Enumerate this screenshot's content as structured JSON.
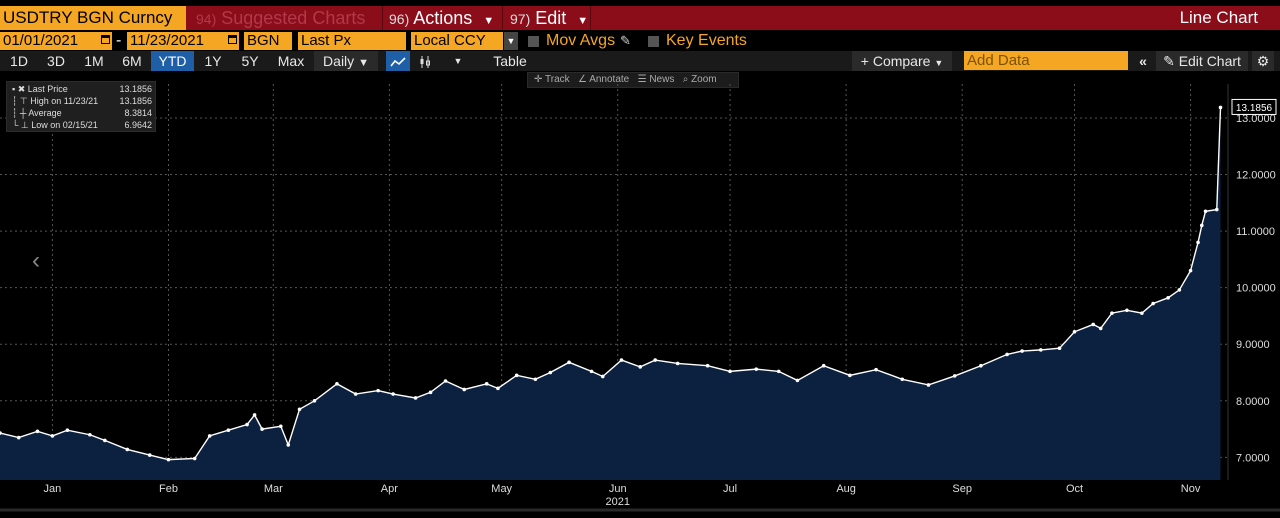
{
  "toolbar": {
    "ticker": "USDTRY BGN Curncy",
    "suggested": {
      "num": "94)",
      "label": "Suggested Charts"
    },
    "actions": {
      "num": "96)",
      "label": "Actions"
    },
    "edit": {
      "num": "97)",
      "label": "Edit"
    },
    "chart_type": "Line Chart"
  },
  "options": {
    "start_date": "01/01/2021",
    "dash": "-",
    "end_date": "11/23/2021",
    "source": "BGN",
    "field": "Last Px",
    "currency": "Local CCY",
    "mov_avgs": "Mov Avgs",
    "key_events": "Key Events"
  },
  "ranges": [
    "1D",
    "3D",
    "1M",
    "6M",
    "YTD",
    "1Y",
    "5Y",
    "Max"
  ],
  "active_range": "YTD",
  "frequency": "Daily",
  "table_label": "Table",
  "compare_label": "Compare",
  "add_data_placeholder": "Add Data",
  "edit_chart_label": "Edit Chart",
  "tools": [
    "Track",
    "Annotate",
    "News",
    "Zoom"
  ],
  "legend": [
    {
      "label": "Last Price",
      "value": "13.1856"
    },
    {
      "label": "High on 11/23/21",
      "value": "13.1856"
    },
    {
      "label": "Average",
      "value": "8.3814"
    },
    {
      "label": "Low on 02/15/21",
      "value": "6.9642"
    }
  ],
  "colors": {
    "line": "#ffffff",
    "area": "#0c2140",
    "accent": "#f5a623",
    "header": "#8b0d1a"
  },
  "chart_data": {
    "type": "area",
    "xlabel": "2021",
    "ylim": [
      6.6,
      13.6
    ],
    "y_ticks": [
      7.0,
      8.0,
      9.0,
      10.0,
      11.0,
      12.0,
      13.0
    ],
    "y_tick_labels": [
      "7.0000",
      "8.0000",
      "9.0000",
      "10.0000",
      "11.0000",
      "12.0000",
      "13.0000"
    ],
    "x_ticks": [
      "Jan",
      "Feb",
      "Mar",
      "Apr",
      "May",
      "Jun",
      "Jul",
      "Aug",
      "Sep",
      "Oct",
      "Nov"
    ],
    "x_tick_dates": [
      "2021-01-15",
      "2021-02-15",
      "2021-03-15",
      "2021-04-15",
      "2021-05-15",
      "2021-06-15",
      "2021-07-15",
      "2021-08-15",
      "2021-09-15",
      "2021-10-15",
      "2021-11-15"
    ],
    "last_value_label": "13.1856",
    "series": [
      {
        "values": [
          [
            "2021-01-01",
            7.43
          ],
          [
            "2021-01-06",
            7.35
          ],
          [
            "2021-01-11",
            7.46
          ],
          [
            "2021-01-15",
            7.38
          ],
          [
            "2021-01-19",
            7.48
          ],
          [
            "2021-01-25",
            7.4
          ],
          [
            "2021-01-29",
            7.3
          ],
          [
            "2021-02-04",
            7.14
          ],
          [
            "2021-02-10",
            7.04
          ],
          [
            "2021-02-15",
            6.96
          ],
          [
            "2021-02-22",
            6.98
          ],
          [
            "2021-02-26",
            7.38
          ],
          [
            "2021-03-03",
            7.48
          ],
          [
            "2021-03-08",
            7.58
          ],
          [
            "2021-03-10",
            7.75
          ],
          [
            "2021-03-12",
            7.5
          ],
          [
            "2021-03-17",
            7.55
          ],
          [
            "2021-03-19",
            7.22
          ],
          [
            "2021-03-22",
            7.85
          ],
          [
            "2021-03-26",
            8.0
          ],
          [
            "2021-04-01",
            8.3
          ],
          [
            "2021-04-06",
            8.12
          ],
          [
            "2021-04-12",
            8.18
          ],
          [
            "2021-04-16",
            8.12
          ],
          [
            "2021-04-22",
            8.05
          ],
          [
            "2021-04-26",
            8.15
          ],
          [
            "2021-04-30",
            8.35
          ],
          [
            "2021-05-05",
            8.2
          ],
          [
            "2021-05-11",
            8.3
          ],
          [
            "2021-05-14",
            8.22
          ],
          [
            "2021-05-19",
            8.45
          ],
          [
            "2021-05-24",
            8.38
          ],
          [
            "2021-05-28",
            8.5
          ],
          [
            "2021-06-02",
            8.68
          ],
          [
            "2021-06-08",
            8.52
          ],
          [
            "2021-06-11",
            8.43
          ],
          [
            "2021-06-16",
            8.72
          ],
          [
            "2021-06-21",
            8.6
          ],
          [
            "2021-06-25",
            8.72
          ],
          [
            "2021-07-01",
            8.66
          ],
          [
            "2021-07-09",
            8.62
          ],
          [
            "2021-07-15",
            8.52
          ],
          [
            "2021-07-22",
            8.56
          ],
          [
            "2021-07-28",
            8.52
          ],
          [
            "2021-08-02",
            8.36
          ],
          [
            "2021-08-09",
            8.62
          ],
          [
            "2021-08-16",
            8.45
          ],
          [
            "2021-08-23",
            8.55
          ],
          [
            "2021-08-30",
            8.38
          ],
          [
            "2021-09-06",
            8.28
          ],
          [
            "2021-09-13",
            8.44
          ],
          [
            "2021-09-20",
            8.62
          ],
          [
            "2021-09-27",
            8.82
          ],
          [
            "2021-10-01",
            8.88
          ],
          [
            "2021-10-06",
            8.9
          ],
          [
            "2021-10-11",
            8.93
          ],
          [
            "2021-10-15",
            9.22
          ],
          [
            "2021-10-20",
            9.35
          ],
          [
            "2021-10-22",
            9.28
          ],
          [
            "2021-10-25",
            9.55
          ],
          [
            "2021-10-29",
            9.6
          ],
          [
            "2021-11-02",
            9.55
          ],
          [
            "2021-11-05",
            9.72
          ],
          [
            "2021-11-09",
            9.82
          ],
          [
            "2021-11-12",
            9.96
          ],
          [
            "2021-11-15",
            10.3
          ],
          [
            "2021-11-17",
            10.8
          ],
          [
            "2021-11-18",
            11.1
          ],
          [
            "2021-11-19",
            11.35
          ],
          [
            "2021-11-22",
            11.38
          ],
          [
            "2021-11-23",
            13.1856
          ]
        ]
      }
    ]
  }
}
